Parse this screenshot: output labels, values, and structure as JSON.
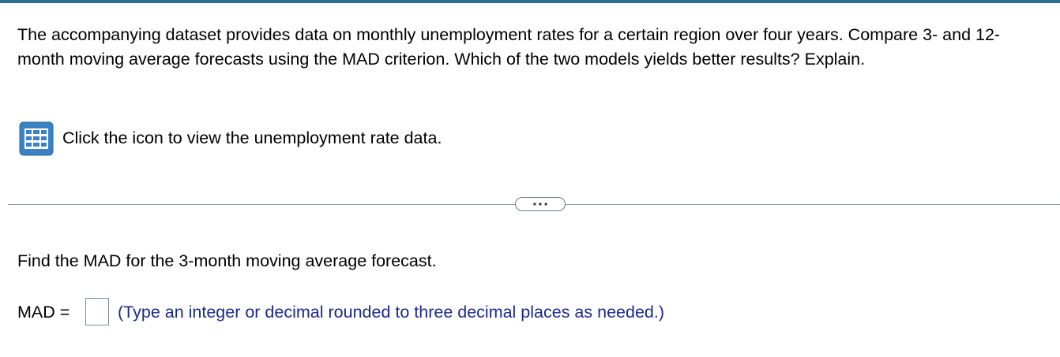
{
  "question": {
    "text": "The accompanying dataset provides data on monthly unemployment rates for a certain region over four years. Compare 3- and 12-month moving average forecasts using the MAD criterion. Which of the two models yields better results? Explain.",
    "data_link": "Click the icon to view the unemployment rate data."
  },
  "part": {
    "prompt": "Find the MAD for the 3-month moving average forecast.",
    "answer_label": "MAD =",
    "hint": "(Type an integer or decimal rounded to three decimal places as needed.)"
  }
}
